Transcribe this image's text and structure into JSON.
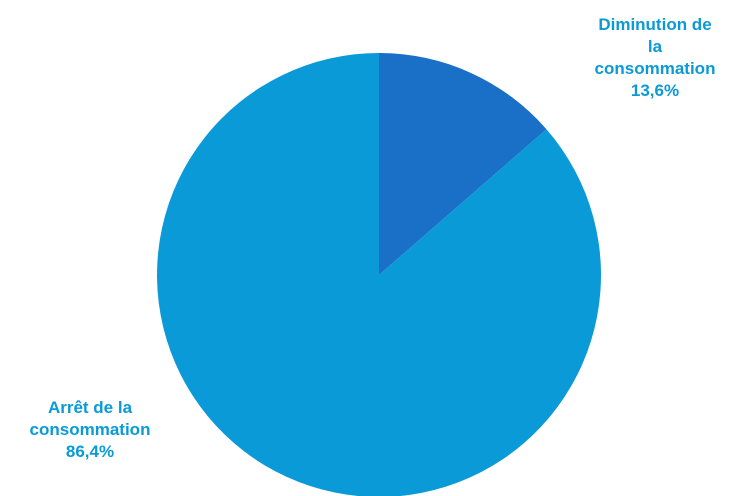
{
  "chart_data": {
    "type": "pie",
    "title": "",
    "slices": [
      {
        "label_lines": [
          "Diminution de",
          "la",
          "consommation"
        ],
        "value_label": "13,6%",
        "value": 13.6,
        "color": "#1a6fc7"
      },
      {
        "label_lines": [
          "Arrêt de la",
          "consommation"
        ],
        "value_label": "86,4%",
        "value": 86.4,
        "color": "#0a9ad7"
      }
    ],
    "label_color": "#0a9ad7",
    "legend": "none"
  }
}
